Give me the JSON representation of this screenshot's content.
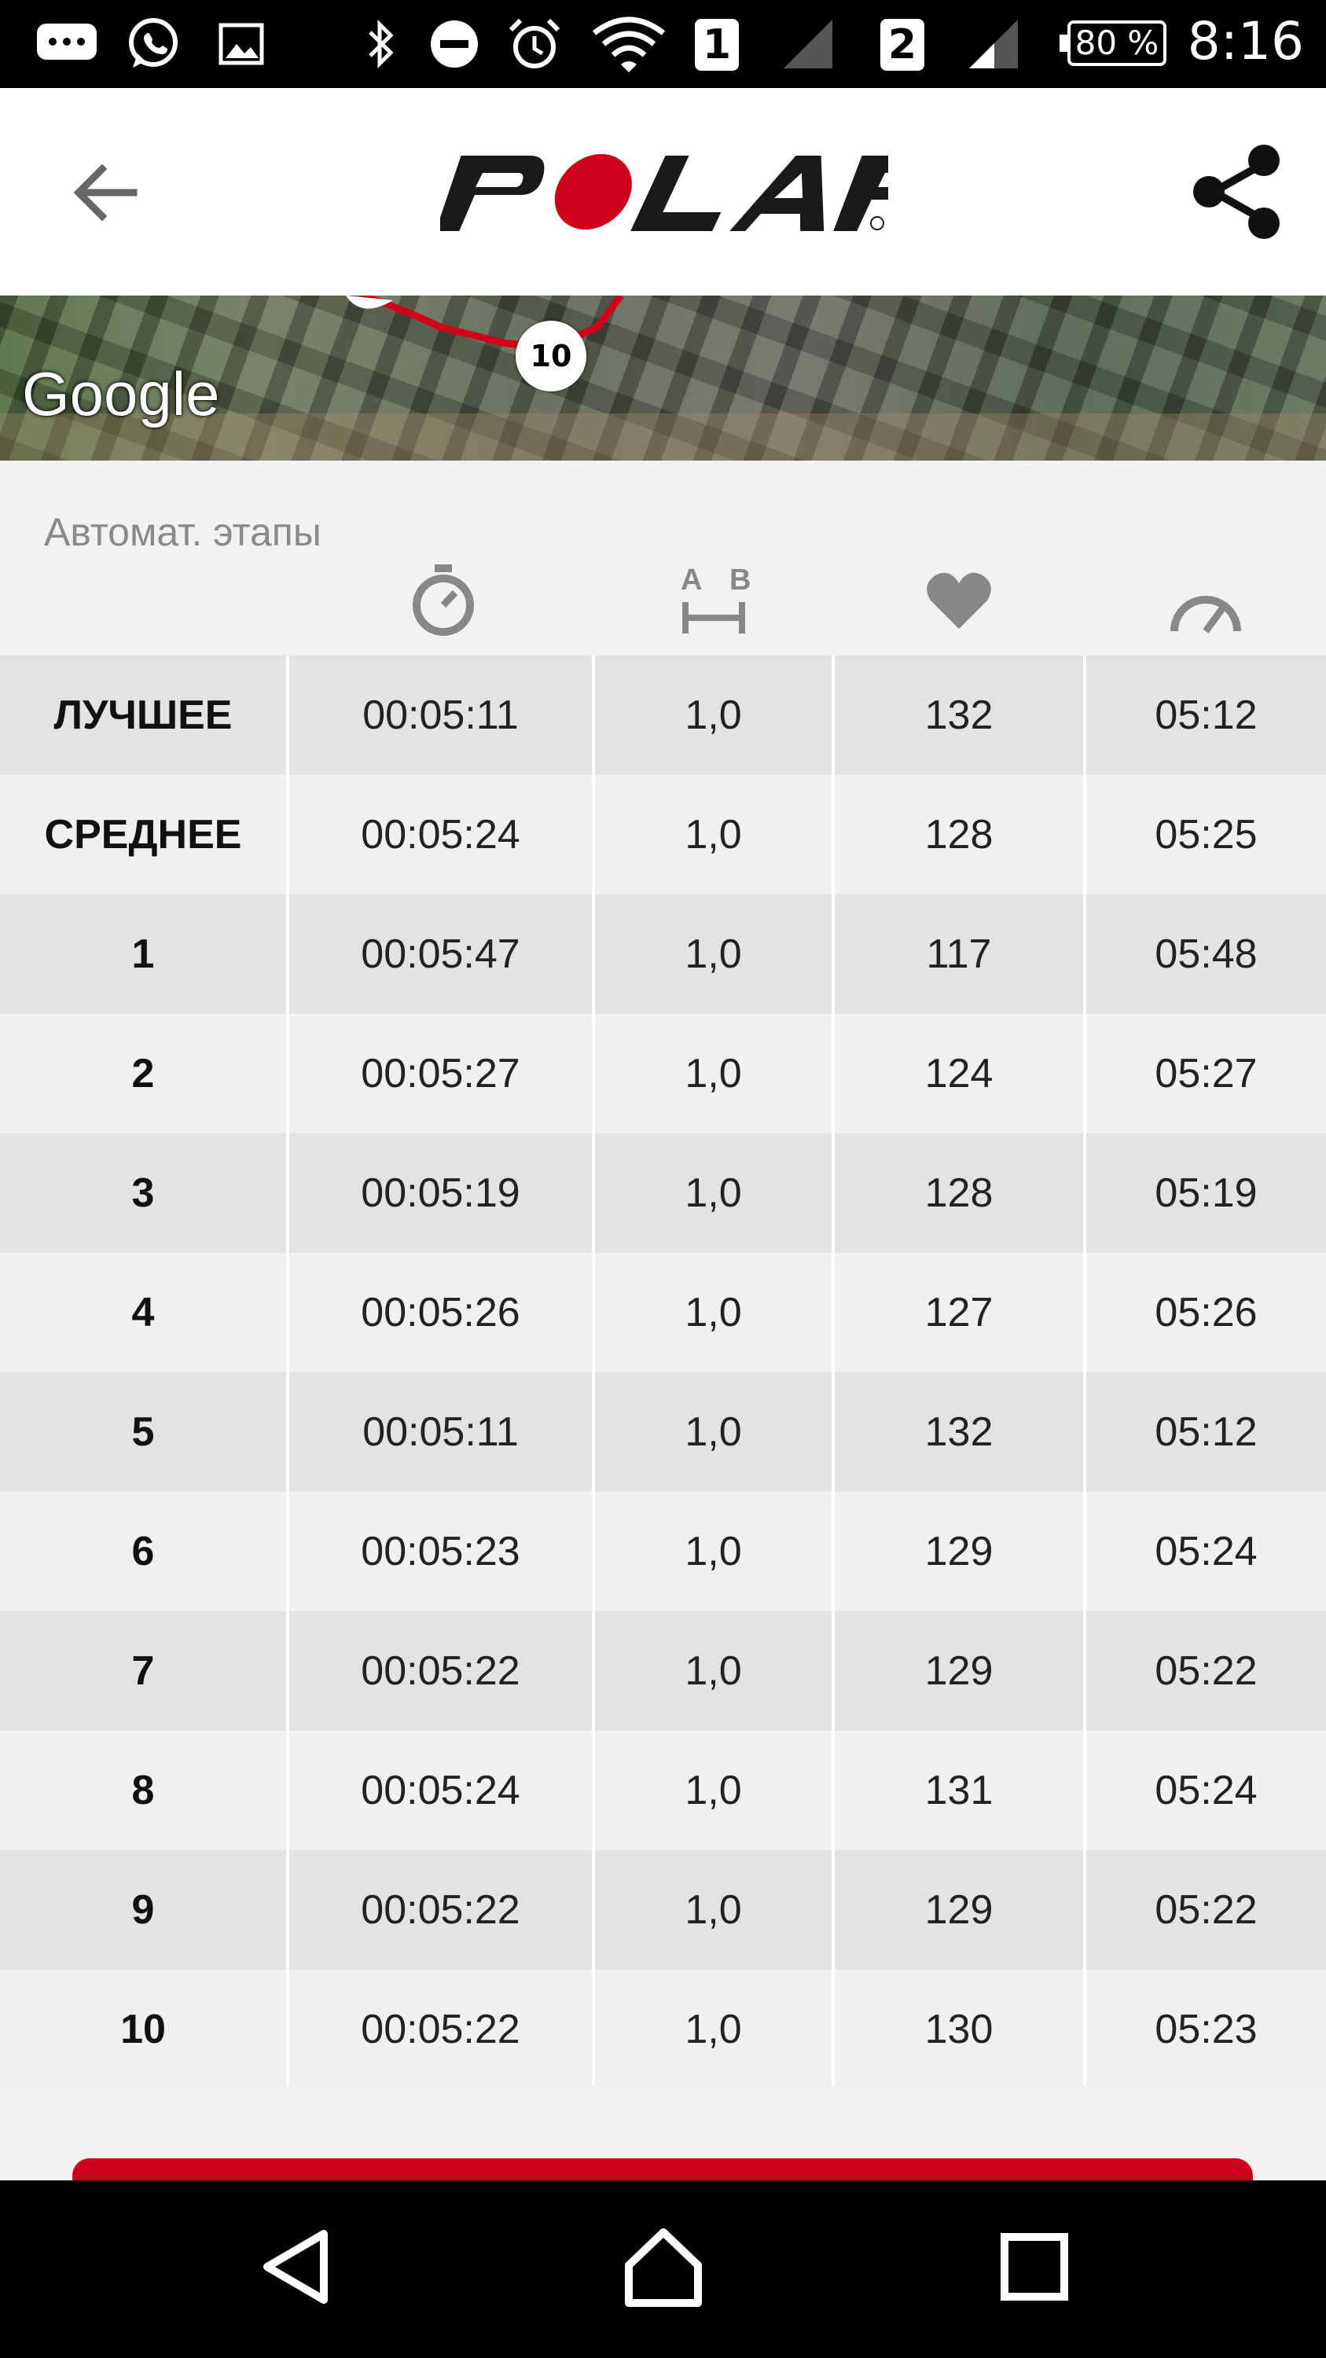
{
  "status_bar": {
    "time": "8:16",
    "battery": "80 %",
    "sim1": "1",
    "sim2": "2"
  },
  "app_bar": {
    "logo_text": "POLAR"
  },
  "map": {
    "attribution": "Google",
    "lap_marker": "10"
  },
  "laps": {
    "section_title": "Автомат. этапы",
    "columns": [
      "timer-icon",
      "distance-icon",
      "heart-icon",
      "pace-icon"
    ],
    "distance_icon_labels": {
      "a": "A",
      "b": "B"
    },
    "rows": [
      {
        "label": "ЛУЧШЕЕ",
        "time": "00:05:11",
        "distance": "1,0",
        "hr": "132",
        "pace": "05:12"
      },
      {
        "label": "СРЕДНЕЕ",
        "time": "00:05:24",
        "distance": "1,0",
        "hr": "128",
        "pace": "05:25"
      },
      {
        "label": "1",
        "time": "00:05:47",
        "distance": "1,0",
        "hr": "117",
        "pace": "05:48"
      },
      {
        "label": "2",
        "time": "00:05:27",
        "distance": "1,0",
        "hr": "124",
        "pace": "05:27"
      },
      {
        "label": "3",
        "time": "00:05:19",
        "distance": "1,0",
        "hr": "128",
        "pace": "05:19"
      },
      {
        "label": "4",
        "time": "00:05:26",
        "distance": "1,0",
        "hr": "127",
        "pace": "05:26"
      },
      {
        "label": "5",
        "time": "00:05:11",
        "distance": "1,0",
        "hr": "132",
        "pace": "05:12"
      },
      {
        "label": "6",
        "time": "00:05:23",
        "distance": "1,0",
        "hr": "129",
        "pace": "05:24"
      },
      {
        "label": "7",
        "time": "00:05:22",
        "distance": "1,0",
        "hr": "129",
        "pace": "05:22"
      },
      {
        "label": "8",
        "time": "00:05:24",
        "distance": "1,0",
        "hr": "131",
        "pace": "05:24"
      },
      {
        "label": "9",
        "time": "00:05:22",
        "distance": "1,0",
        "hr": "129",
        "pace": "05:22"
      },
      {
        "label": "10",
        "time": "00:05:22",
        "distance": "1,0",
        "hr": "130",
        "pace": "05:23"
      }
    ]
  },
  "colors": {
    "brand_red": "#d0021b",
    "row_dark": "#e3e3e5",
    "row_light": "#f0f0f0"
  }
}
